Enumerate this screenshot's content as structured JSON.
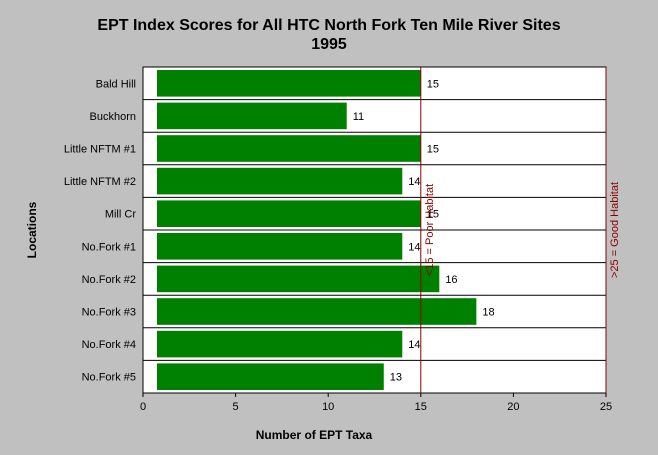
{
  "chart_data": {
    "type": "bar",
    "orientation": "horizontal",
    "title": "EPT Index Scores for All HTC North Fork Ten Mile River Sites",
    "subtitle": "1995",
    "xlabel": "Number of EPT Taxa",
    "ylabel": "Locations",
    "categories": [
      "Bald Hill",
      "Buckhorn",
      "Little NFTM #1",
      "Little NFTM #2",
      "Mill Cr",
      "No.Fork #1",
      "No.Fork #2",
      "No.Fork #3",
      "No.Fork #4",
      "No.Fork #5"
    ],
    "values": [
      15,
      11,
      15,
      14,
      15,
      14,
      16,
      18,
      14,
      13
    ],
    "xlim": [
      0,
      25
    ],
    "xticks": [
      "0",
      "5",
      "10",
      "15",
      "20",
      "25"
    ],
    "bar_color": "#008000",
    "reference_lines": [
      {
        "x": 15,
        "label": "<15 = Poor Habitat",
        "color": "#8b0000"
      },
      {
        "x": 25,
        "label": ">25 = Good Habitat",
        "color": "#8b0000"
      }
    ],
    "grid": "horizontal row separators"
  }
}
